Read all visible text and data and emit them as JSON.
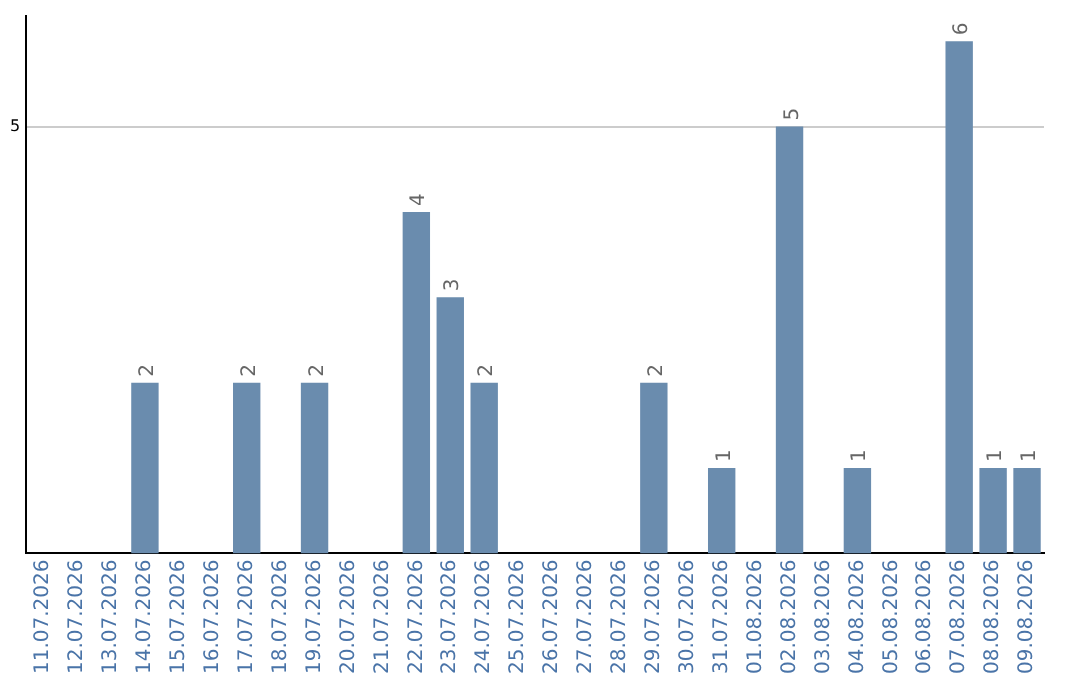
{
  "chart_data": {
    "type": "bar",
    "categories": [
      "11.07.2026",
      "12.07.2026",
      "13.07.2026",
      "14.07.2026",
      "15.07.2026",
      "16.07.2026",
      "17.07.2026",
      "18.07.2026",
      "19.07.2026",
      "20.07.2026",
      "21.07.2026",
      "22.07.2026",
      "23.07.2026",
      "24.07.2026",
      "25.07.2026",
      "26.07.2026",
      "27.07.2026",
      "28.07.2026",
      "29.07.2026",
      "30.07.2026",
      "31.07.2026",
      "01.08.2026",
      "02.08.2026",
      "03.08.2026",
      "04.08.2026",
      "05.08.2026",
      "06.08.2026",
      "07.08.2026",
      "08.08.2026",
      "09.08.2026"
    ],
    "values": [
      0,
      0,
      0,
      2,
      0,
      0,
      2,
      0,
      2,
      0,
      0,
      4,
      3,
      2,
      0,
      0,
      0,
      0,
      2,
      0,
      1,
      0,
      5,
      0,
      1,
      0,
      0,
      6,
      1,
      1
    ],
    "value_labels": [
      null,
      null,
      null,
      "2",
      null,
      null,
      "2",
      null,
      "2",
      null,
      null,
      "4",
      "3",
      "2",
      null,
      null,
      null,
      null,
      "2",
      null,
      "1",
      null,
      "5",
      null,
      "1",
      null,
      null,
      "6",
      "1",
      "1"
    ],
    "color": "#6a8cae",
    "ylim": [
      0,
      6.3
    ],
    "yticks": [
      5
    ],
    "grid": "y"
  }
}
